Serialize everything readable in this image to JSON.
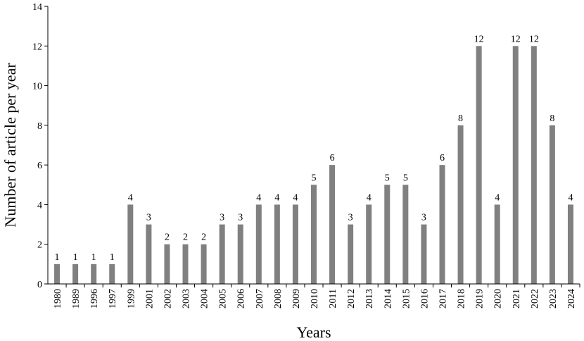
{
  "chart_data": {
    "type": "bar",
    "xlabel": "Years",
    "ylabel": "Number of article per year",
    "ylim": [
      0,
      14
    ],
    "yticks": [
      0,
      2,
      4,
      6,
      8,
      10,
      12,
      14
    ],
    "grid": false,
    "legend": "none",
    "bar_color": "#808080",
    "categories": [
      "1980",
      "1989",
      "1996",
      "1997",
      "1999",
      "2001",
      "2002",
      "2003",
      "2004",
      "2005",
      "2006",
      "2007",
      "2008",
      "2009",
      "2010",
      "2011",
      "2012",
      "2013",
      "2014",
      "2015",
      "2016",
      "2017",
      "2018",
      "2019",
      "2020",
      "2021",
      "2022",
      "2023",
      "2024"
    ],
    "values": [
      1,
      1,
      1,
      1,
      4,
      3,
      2,
      2,
      2,
      3,
      3,
      4,
      4,
      4,
      5,
      6,
      3,
      4,
      5,
      5,
      3,
      6,
      8,
      12,
      4,
      12,
      12,
      8,
      4
    ]
  }
}
